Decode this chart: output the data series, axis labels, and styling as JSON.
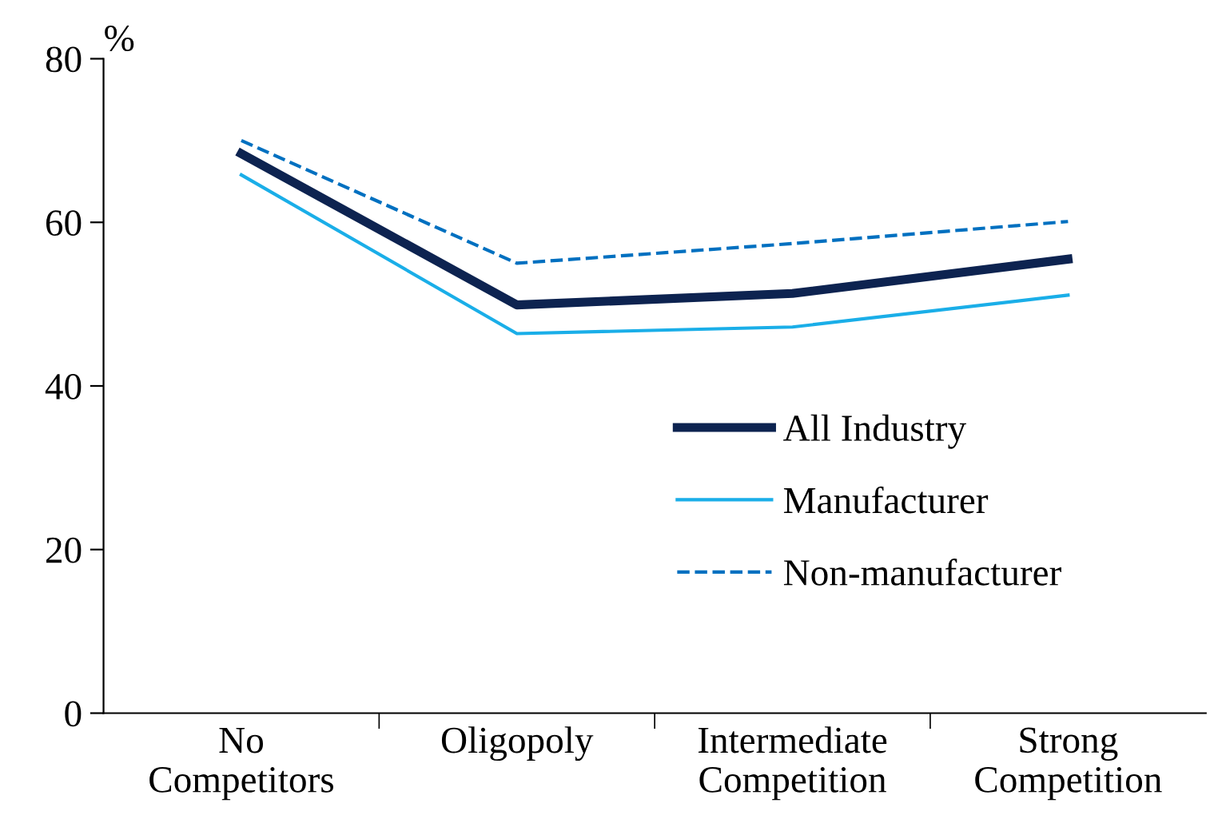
{
  "chart_data": {
    "type": "line",
    "ylabel": "%",
    "categories": [
      "No\nCompetitors",
      "Oligopoly",
      "Intermediate\nCompetition",
      "Strong\nCompetition"
    ],
    "series": [
      {
        "name": "All Industry",
        "color": "#0d2350",
        "values": [
          68.4,
          49.9,
          51.3,
          55.5
        ],
        "line_style": "solid"
      },
      {
        "name": "Manufacturer",
        "color": "#1aaee8",
        "values": [
          65.8,
          46.4,
          47.2,
          51.1
        ],
        "line_style": "solid"
      },
      {
        "name": "Non-manufacturer",
        "color": "#0070c0",
        "values": [
          70.0,
          55.0,
          57.4,
          60.1
        ],
        "line_style": "dashed"
      }
    ],
    "ylim": [
      0,
      80
    ],
    "yticks": [
      0,
      20,
      40,
      60,
      80
    ],
    "grid": false,
    "legend": "right",
    "marker": "none"
  }
}
